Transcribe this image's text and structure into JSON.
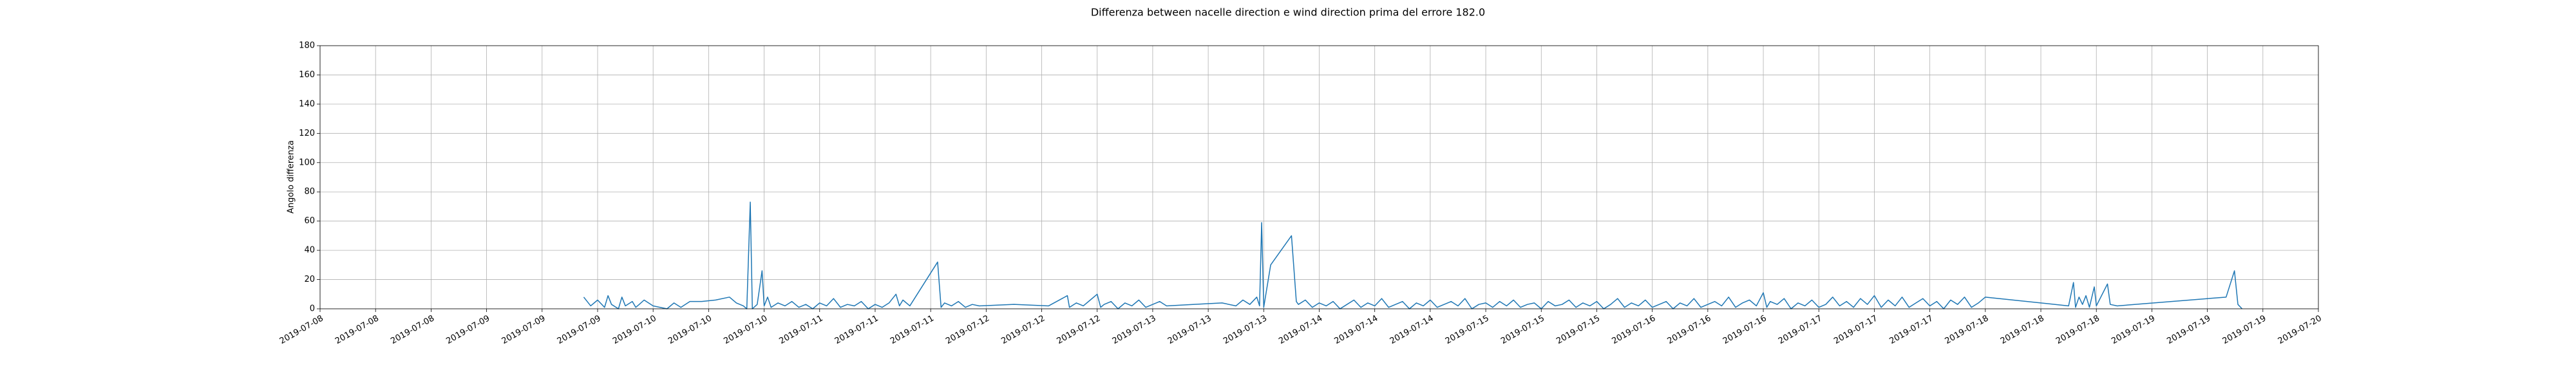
{
  "chart_data": {
    "type": "line",
    "title": "Differenza between nacelle direction e wind direction prima del errore 182.0",
    "ylabel": "Angolo differenza",
    "xlim": [
      0,
      288
    ],
    "xticks": [
      {
        "value": 0,
        "label": "2019-07-08"
      },
      {
        "value": 8,
        "label": "2019-07-08"
      },
      {
        "value": 16,
        "label": "2019-07-08"
      },
      {
        "value": 24,
        "label": "2019-07-09"
      },
      {
        "value": 32,
        "label": "2019-07-09"
      },
      {
        "value": 40,
        "label": "2019-07-09"
      },
      {
        "value": 48,
        "label": "2019-07-10"
      },
      {
        "value": 56,
        "label": "2019-07-10"
      },
      {
        "value": 64,
        "label": "2019-07-10"
      },
      {
        "value": 72,
        "label": "2019-07-11"
      },
      {
        "value": 80,
        "label": "2019-07-11"
      },
      {
        "value": 88,
        "label": "2019-07-11"
      },
      {
        "value": 96,
        "label": "2019-07-12"
      },
      {
        "value": 104,
        "label": "2019-07-12"
      },
      {
        "value": 112,
        "label": "2019-07-12"
      },
      {
        "value": 120,
        "label": "2019-07-13"
      },
      {
        "value": 128,
        "label": "2019-07-13"
      },
      {
        "value": 136,
        "label": "2019-07-13"
      },
      {
        "value": 144,
        "label": "2019-07-14"
      },
      {
        "value": 152,
        "label": "2019-07-14"
      },
      {
        "value": 160,
        "label": "2019-07-14"
      },
      {
        "value": 168,
        "label": "2019-07-15"
      },
      {
        "value": 176,
        "label": "2019-07-15"
      },
      {
        "value": 184,
        "label": "2019-07-15"
      },
      {
        "value": 192,
        "label": "2019-07-16"
      },
      {
        "value": 200,
        "label": "2019-07-16"
      },
      {
        "value": 208,
        "label": "2019-07-16"
      },
      {
        "value": 216,
        "label": "2019-07-17"
      },
      {
        "value": 224,
        "label": "2019-07-17"
      },
      {
        "value": 232,
        "label": "2019-07-17"
      },
      {
        "value": 240,
        "label": "2019-07-18"
      },
      {
        "value": 248,
        "label": "2019-07-18"
      },
      {
        "value": 256,
        "label": "2019-07-18"
      },
      {
        "value": 264,
        "label": "2019-07-19"
      },
      {
        "value": 272,
        "label": "2019-07-19"
      },
      {
        "value": 280,
        "label": "2019-07-19"
      },
      {
        "value": 288,
        "label": "2019-07-20"
      }
    ],
    "ylim": [
      0,
      180
    ],
    "yticks": [
      0,
      20,
      40,
      60,
      80,
      100,
      120,
      140,
      160,
      180
    ],
    "grid": true,
    "color": "#1f77b4",
    "x": [
      38,
      39,
      40,
      41,
      41.5,
      42,
      43,
      43.5,
      44,
      45,
      45.5,
      46,
      46.7,
      48,
      50,
      51,
      52,
      53.3,
      55,
      57,
      59,
      60,
      61,
      61.5,
      62,
      62.3,
      63,
      63.7,
      64,
      64.5,
      65,
      66,
      67,
      68,
      69,
      70,
      71,
      72,
      73,
      74,
      75,
      76,
      77,
      78,
      79,
      80,
      81,
      82,
      83,
      83.5,
      84,
      85,
      89,
      89.5,
      90,
      91,
      92,
      93,
      94,
      95,
      100,
      105,
      107.7,
      108,
      109,
      110,
      111,
      112,
      112.5,
      113,
      114,
      115,
      116,
      117,
      118,
      119,
      120,
      121,
      122,
      126,
      130,
      132,
      133,
      134,
      135,
      135.4,
      135.7,
      136,
      137,
      140,
      140.7,
      141,
      142,
      143,
      144,
      145,
      146,
      147,
      148,
      149,
      150,
      151,
      152,
      153,
      154,
      155,
      156,
      157,
      158,
      159,
      160,
      161,
      162,
      163,
      164,
      165,
      166,
      167,
      168,
      169,
      170,
      171,
      172,
      173,
      174,
      175,
      176,
      177,
      178,
      179,
      180,
      181,
      182,
      183,
      184,
      185,
      186,
      187,
      188,
      189,
      190,
      191,
      192,
      193,
      194,
      195,
      196,
      197,
      198,
      199,
      200,
      201,
      202,
      203,
      204,
      205,
      206,
      207,
      208,
      208.5,
      209,
      210,
      211,
      212,
      213,
      214,
      215,
      216,
      217,
      218,
      219,
      220,
      221,
      222,
      223,
      224,
      225,
      226,
      227,
      228,
      229,
      230,
      231,
      232,
      233,
      234,
      235,
      236,
      237,
      238,
      239,
      240,
      252,
      252.7,
      253,
      253.5,
      254,
      254.5,
      255,
      255.7,
      256,
      257.6,
      258,
      259,
      274.7,
      275.9,
      276.4,
      277
    ],
    "values": [
      8,
      2,
      6,
      1,
      9,
      3,
      0,
      8,
      2,
      5,
      1,
      3,
      6,
      2,
      0,
      4,
      1,
      5,
      5,
      6,
      8,
      4,
      2,
      0,
      73,
      0,
      3,
      26,
      2,
      8,
      1,
      4,
      2,
      5,
      1,
      3,
      0,
      4,
      2,
      7,
      1,
      3,
      2,
      5,
      0,
      3,
      1,
      4,
      10,
      2,
      6,
      2,
      32,
      1,
      4,
      2,
      5,
      1,
      3,
      2,
      3,
      2,
      9,
      1,
      4,
      2,
      6,
      10,
      1,
      3,
      5,
      0,
      4,
      2,
      6,
      1,
      3,
      5,
      2,
      3,
      4,
      2,
      6,
      3,
      8,
      2,
      59,
      1,
      30,
      50,
      5,
      3,
      6,
      1,
      4,
      2,
      5,
      0,
      3,
      6,
      1,
      4,
      2,
      7,
      1,
      3,
      5,
      0,
      4,
      2,
      6,
      1,
      3,
      5,
      2,
      7,
      0,
      3,
      4,
      1,
      5,
      2,
      6,
      1,
      3,
      4,
      0,
      5,
      2,
      3,
      6,
      1,
      4,
      2,
      5,
      0,
      3,
      7,
      1,
      4,
      2,
      6,
      1,
      3,
      5,
      0,
      4,
      2,
      7,
      1,
      3,
      5,
      2,
      8,
      1,
      4,
      6,
      2,
      11,
      1,
      5,
      3,
      7,
      0,
      4,
      2,
      6,
      1,
      3,
      8,
      2,
      5,
      1,
      7,
      3,
      9,
      1,
      6,
      2,
      8,
      1,
      4,
      7,
      2,
      5,
      0,
      6,
      3,
      8,
      1,
      4,
      8,
      2,
      18,
      1,
      8,
      3,
      9,
      1,
      15,
      2,
      17,
      3,
      2,
      8,
      26,
      3,
      0
    ]
  }
}
